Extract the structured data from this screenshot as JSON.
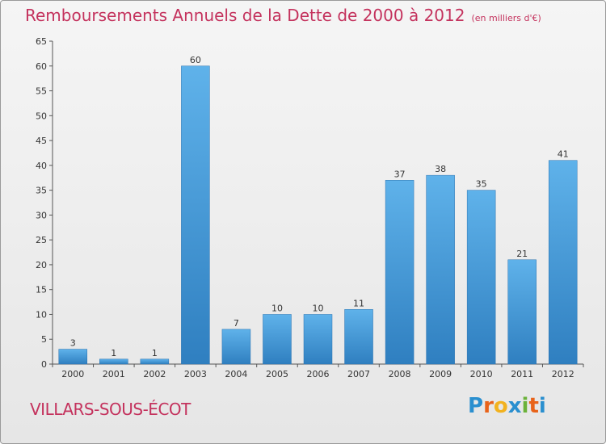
{
  "title": "Remboursements Annuels de la Dette de 2000 à 2012",
  "unit": "(en milliers d'€)",
  "town": "VILLARS-SOUS-ÉCOT",
  "logo": {
    "letters": [
      "P",
      "r",
      "o",
      "x",
      "i",
      "t",
      "i"
    ],
    "colors": [
      "#2a8fcf",
      "#e8631a",
      "#f2b21f",
      "#2a8fcf",
      "#6bb23a",
      "#e8631a",
      "#2a8fcf"
    ]
  },
  "colors": {
    "bar": "#4a9fdc",
    "title": "#c4325d"
  },
  "chart_data": {
    "type": "bar",
    "categories": [
      "2000",
      "2001",
      "2002",
      "2003",
      "2004",
      "2005",
      "2006",
      "2007",
      "2008",
      "2009",
      "2010",
      "2011",
      "2012"
    ],
    "values": [
      3,
      1,
      1,
      60,
      7,
      10,
      10,
      11,
      37,
      38,
      35,
      21,
      41
    ],
    "ylim": [
      0,
      65
    ],
    "yticks": [
      0,
      5,
      10,
      15,
      20,
      25,
      30,
      35,
      40,
      45,
      50,
      55,
      60,
      65
    ],
    "grid": false,
    "data_labels": true
  }
}
